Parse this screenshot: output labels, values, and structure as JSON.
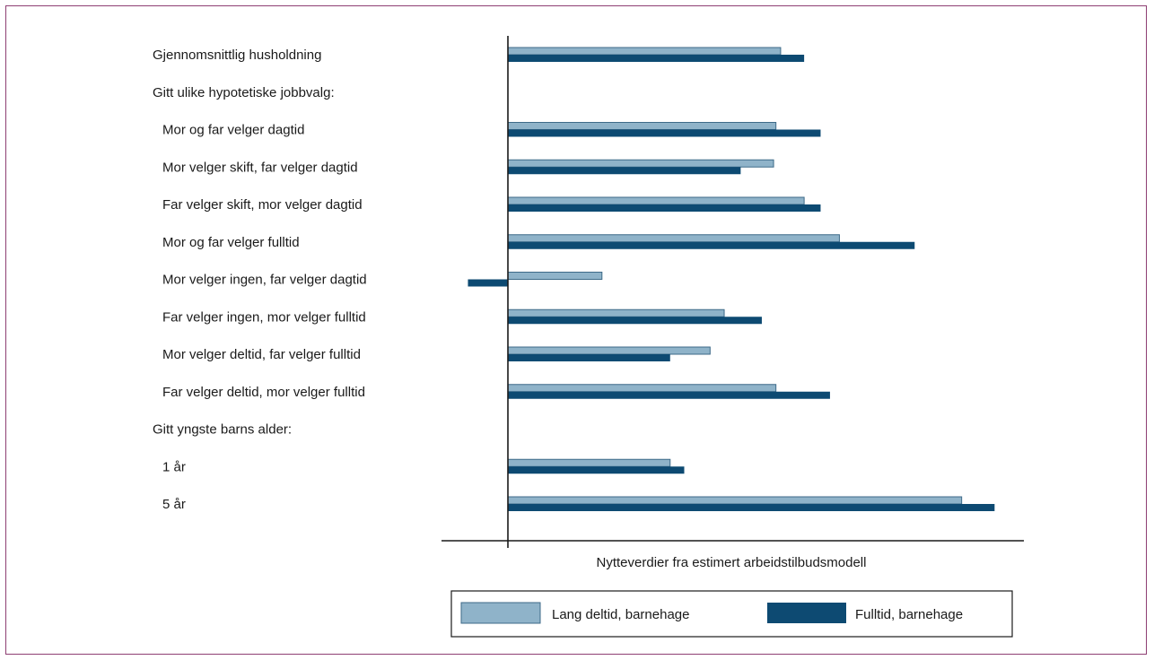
{
  "chart_data": {
    "type": "bar",
    "orientation": "horizontal",
    "title": "",
    "xlabel": "Nytteverdier fra estimert arbeidstilbudsmodell",
    "ylabel": "",
    "grid": false,
    "legend_position": "bottom",
    "xlim": [
      -0.9,
      10.8
    ],
    "categories": [
      "Gjennomsnittlig husholdning",
      "Gitt ulike hypotetiske jobbvalg:",
      "Mor og far velger dagtid",
      "Mor velger skift, far velger dagtid",
      "Far velger skift, mor velger dagtid",
      "Mor og far velger fulltid",
      "Mor velger ingen, far velger dagtid",
      "Far velger ingen, mor velger fulltid",
      "Mor velger deltid, far velger fulltid",
      "Far velger deltid, mor velger fulltid",
      "Gitt yngste barns alder:",
      "1 år",
      "5 år"
    ],
    "indent": [
      false,
      false,
      true,
      true,
      true,
      true,
      true,
      true,
      true,
      true,
      false,
      true,
      true
    ],
    "series": [
      {
        "name": "Lang deltid, barnehage",
        "color": "#8fb3c9",
        "values": [
          5.8,
          null,
          5.7,
          5.65,
          6.3,
          7.05,
          2.0,
          4.6,
          4.3,
          5.7,
          null,
          3.45,
          9.65
        ]
      },
      {
        "name": "Fulltid, barnehage",
        "color": "#0d4a72",
        "values": [
          6.3,
          null,
          6.65,
          4.95,
          6.65,
          8.65,
          -0.85,
          5.4,
          3.45,
          6.85,
          null,
          3.75,
          10.35
        ]
      }
    ]
  }
}
